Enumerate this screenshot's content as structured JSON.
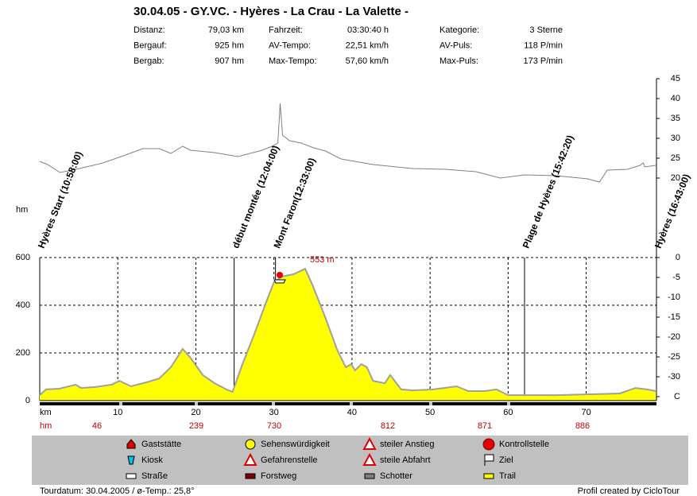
{
  "chart_data": {
    "type": "profile",
    "title": "30.04.05 - GY.VC. - Hyères - La Crau - La Valette -",
    "stats": [
      [
        {
          "label": "Distanz:",
          "value": "79,03 km"
        },
        {
          "label": "Fahrzeit:",
          "value": "03:30:40 h"
        },
        {
          "label": "Kategorie:",
          "value": "3 Sterne"
        }
      ],
      [
        {
          "label": "Bergauf:",
          "value": "925 hm"
        },
        {
          "label": "AV-Tempo:",
          "value": "22,51 km/h"
        },
        {
          "label": "AV-Puls:",
          "value": "118 P/min"
        }
      ],
      [
        {
          "label": "Bergab:",
          "value": "907 hm"
        },
        {
          "label": "Max-Tempo:",
          "value": "57,60 km/h"
        },
        {
          "label": "Max-Puls:",
          "value": "173 P/min"
        }
      ]
    ],
    "ylabel": "hm",
    "xlim": [
      0,
      79
    ],
    "xticks": [
      {
        "value": 0,
        "label": "km"
      },
      10,
      20,
      30,
      40,
      50,
      60,
      70
    ],
    "ylim": [
      0,
      600
    ],
    "yticks": [
      0,
      200,
      400,
      600
    ],
    "y2lim": [
      -36,
      45
    ],
    "y2ticks": [
      45,
      40,
      35,
      30,
      25,
      20,
      0,
      -5,
      -10,
      -15,
      -20,
      -25,
      -30,
      {
        "value": -35,
        "label": "C"
      }
    ],
    "grid": true,
    "series": [
      {
        "color": "#ffff00",
        "x": [
          0,
          0.8,
          2.5,
          4.6,
          5.3,
          7.1,
          9.2,
          10.2,
          11.7,
          13.7,
          15.3,
          16.8,
          18.3,
          19.3,
          20.9,
          22.4,
          23.9,
          24.7,
          25.9,
          27.5,
          29,
          30,
          31,
          32.5,
          34,
          35,
          36.6,
          38.1,
          39.2,
          39.9,
          40.4,
          41.2,
          41.9,
          42.7,
          44.2,
          44.9,
          46.3,
          47.8,
          50.4,
          53.4,
          54.9,
          57,
          58.5,
          60,
          66.1,
          74.3,
          76.3,
          77.8,
          78.9
        ],
        "values": [
          23,
          47,
          50,
          67,
          53,
          57,
          67,
          83,
          60,
          77,
          93,
          140,
          217,
          180,
          107,
          73,
          47,
          37,
          147,
          280,
          413,
          497,
          520,
          530,
          553,
          480,
          347,
          213,
          140,
          153,
          127,
          153,
          140,
          83,
          73,
          107,
          47,
          43,
          47,
          60,
          40,
          40,
          47,
          23,
          23,
          30,
          53,
          47,
          40
        ]
      },
      {
        "color": "#808080",
        "axis": "y2",
        "x": [
          0,
          1,
          2.6,
          5.1,
          8.1,
          10.7,
          13.2,
          15.3,
          16.8,
          18.3,
          19.3,
          22.4,
          25.4,
          28.5,
          30,
          30.5,
          30.8,
          31.1,
          32,
          33.5,
          35.1,
          36.6,
          38.6,
          42.7,
          47.8,
          51.9,
          55.9,
          59,
          62.1,
          66.1,
          70.2,
          71.7,
          72.7,
          75.3,
          76.9,
          77.3,
          77.5,
          78.9
        ],
        "values": [
          24.2,
          23.4,
          21.4,
          22.4,
          23.8,
          25.6,
          27.4,
          27.4,
          26.2,
          28,
          27,
          26.4,
          25.4,
          27,
          28.2,
          28.8,
          38.8,
          30.8,
          29.4,
          28.8,
          27.6,
          26.8,
          24.8,
          23.4,
          22.4,
          22.2,
          21.6,
          20,
          20.8,
          20.6,
          19.8,
          19,
          22,
          22.2,
          23.2,
          23.8,
          22.8,
          23.2
        ]
      }
    ],
    "annotation": {
      "value": 553,
      "label": "553 m"
    },
    "waypoints": [
      {
        "label": "Hyères Start (10:58:00)",
        "km": 0
      },
      {
        "label": "début montée (12:04:00)",
        "km": 24.9
      },
      {
        "label": "Mont Faron(12:33:00)",
        "km": 30.2
      },
      {
        "label": "Plage de Hyères (15:42:20)",
        "km": 62.1
      },
      {
        "label": "Hyères (16:43:00)",
        "km": 79
      }
    ],
    "hm_row": {
      "label": "hm",
      "values": [
        46,
        239,
        730,
        812,
        871,
        886
      ]
    },
    "legend": [
      "Gaststätte",
      "Kiosk",
      "Straße",
      "Sehenswürdigkeit",
      "Gefahrenstelle",
      "Forstweg",
      "steiler Anstieg",
      "steile Abfahrt",
      "Schotter",
      "Kontrollstelle",
      "Ziel",
      "Trail"
    ],
    "footer": {
      "left": "Tourdatum: 30.04.2005 / ø-Temp.: 25,8°",
      "right": "Profil created by CicloTour"
    }
  }
}
